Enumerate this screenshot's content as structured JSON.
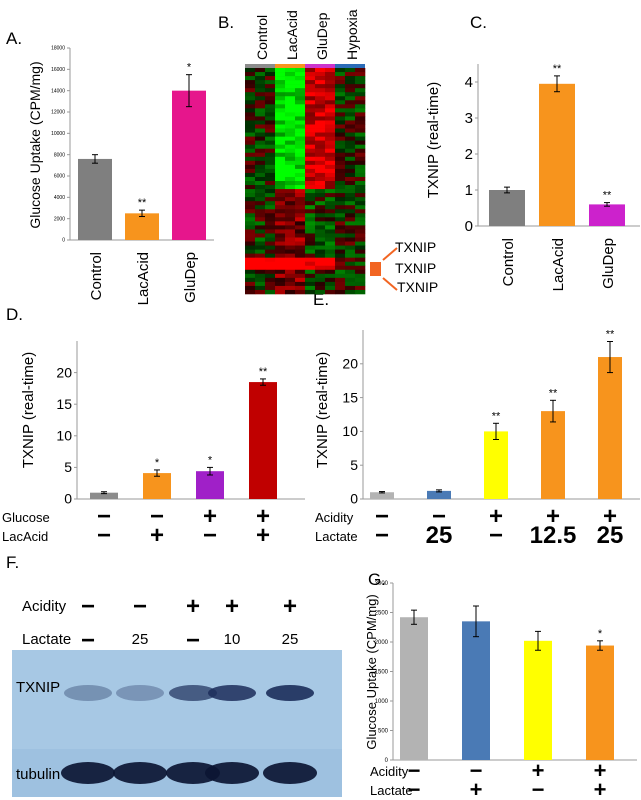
{
  "panels": {
    "A": {
      "letter": "A."
    },
    "B": {
      "letter": "B."
    },
    "C": {
      "letter": "C."
    },
    "D": {
      "letter": "D."
    },
    "E": {
      "letter": "E."
    },
    "F": {
      "letter": "F."
    },
    "G": {
      "letter": "G."
    }
  },
  "heatmap": {
    "columns": [
      "Control",
      "LacAcid",
      "GluDep",
      "Hypoxia"
    ],
    "column_colors": [
      "#8c8c8c",
      "#f7941d",
      "#cc33cc",
      "#2b6cb8"
    ],
    "markers": [
      "TXNIP",
      "TXNIP",
      "TXNIP"
    ]
  },
  "blot": {
    "row_labels": [
      "Acidity",
      "Lactate"
    ],
    "acidity": [
      "−",
      "−",
      "+",
      "+",
      "+"
    ],
    "lactate": [
      "−",
      "25",
      "−",
      "10",
      "25"
    ],
    "bands": [
      "TXNIP",
      "tubulin"
    ]
  },
  "chart_data": [
    {
      "panel": "A",
      "type": "bar",
      "ylabel": "Glucose Uptake (CPM/mg)",
      "ylim": [
        0,
        18000
      ],
      "yticks": [
        0,
        2000,
        4000,
        6000,
        8000,
        10000,
        12000,
        14000,
        16000,
        18000
      ],
      "categories": [
        "Control",
        "LacAcid",
        "GluDep"
      ],
      "values": [
        7600,
        2500,
        14000
      ],
      "errors": [
        400,
        300,
        1500
      ],
      "significance": [
        "",
        "**",
        "*"
      ],
      "colors": [
        "#7f7f7f",
        "#f7941d",
        "#e6168c"
      ]
    },
    {
      "panel": "C",
      "type": "bar",
      "ylabel": "TXNIP (real-time)",
      "ylim": [
        0,
        4.5
      ],
      "yticks": [
        0,
        1,
        2,
        3,
        4
      ],
      "categories": [
        "Control",
        "LacAcid",
        "GluDep"
      ],
      "values": [
        1.0,
        3.95,
        0.6
      ],
      "errors": [
        0.08,
        0.22,
        0.05
      ],
      "significance": [
        "",
        "**",
        "**"
      ],
      "colors": [
        "#7f7f7f",
        "#f7941d",
        "#cc22cc"
      ]
    },
    {
      "panel": "D",
      "type": "bar",
      "ylabel": "TXNIP (real-time)",
      "ylim": [
        0,
        25
      ],
      "yticks": [
        0,
        5,
        10,
        15,
        20
      ],
      "row_labels": [
        "Glucose",
        "LacAcid"
      ],
      "conditions": [
        [
          "−",
          "−"
        ],
        [
          "−",
          "+"
        ],
        [
          "+",
          "−"
        ],
        [
          "+",
          "+"
        ]
      ],
      "values": [
        1.0,
        4.1,
        4.4,
        18.5
      ],
      "errors": [
        0.15,
        0.5,
        0.6,
        0.5
      ],
      "significance": [
        "",
        "*",
        "*",
        "**"
      ],
      "colors": [
        "#8c8c8c",
        "#f7941d",
        "#a020c8",
        "#c00000"
      ]
    },
    {
      "panel": "E",
      "type": "bar",
      "ylabel": "TXNIP (real-time)",
      "ylim": [
        0,
        25
      ],
      "yticks": [
        0,
        5,
        10,
        15,
        20
      ],
      "row_labels": [
        "Acidity",
        "Lactate"
      ],
      "conditions": [
        [
          "−",
          "−"
        ],
        [
          "−",
          "25"
        ],
        [
          "+",
          "−"
        ],
        [
          "+",
          "12.5"
        ],
        [
          "+",
          "25"
        ]
      ],
      "values": [
        1.0,
        1.2,
        10.0,
        13.0,
        21.0
      ],
      "errors": [
        0.1,
        0.15,
        1.2,
        1.6,
        2.3
      ],
      "significance": [
        "",
        "",
        "**",
        "**",
        "**"
      ],
      "colors": [
        "#b3b3b3",
        "#4a7ab5",
        "#ffff00",
        "#f7941d",
        "#f7941d"
      ]
    },
    {
      "panel": "G",
      "type": "bar",
      "ylabel": "Glucose Uptake (CPM/mg)",
      "ylim": [
        0,
        3000
      ],
      "yticks": [
        0,
        500,
        1000,
        1500,
        2000,
        2500,
        3000
      ],
      "row_labels": [
        "Acidity",
        "Lactate"
      ],
      "conditions": [
        [
          "−",
          "−"
        ],
        [
          "−",
          "+"
        ],
        [
          "+",
          "−"
        ],
        [
          "+",
          "+"
        ]
      ],
      "values": [
        2420,
        2350,
        2020,
        1940
      ],
      "errors": [
        120,
        260,
        160,
        80
      ],
      "significance": [
        "",
        "",
        "",
        "*"
      ],
      "colors": [
        "#b3b3b3",
        "#4a7ab5",
        "#ffff00",
        "#f7941d"
      ]
    }
  ]
}
